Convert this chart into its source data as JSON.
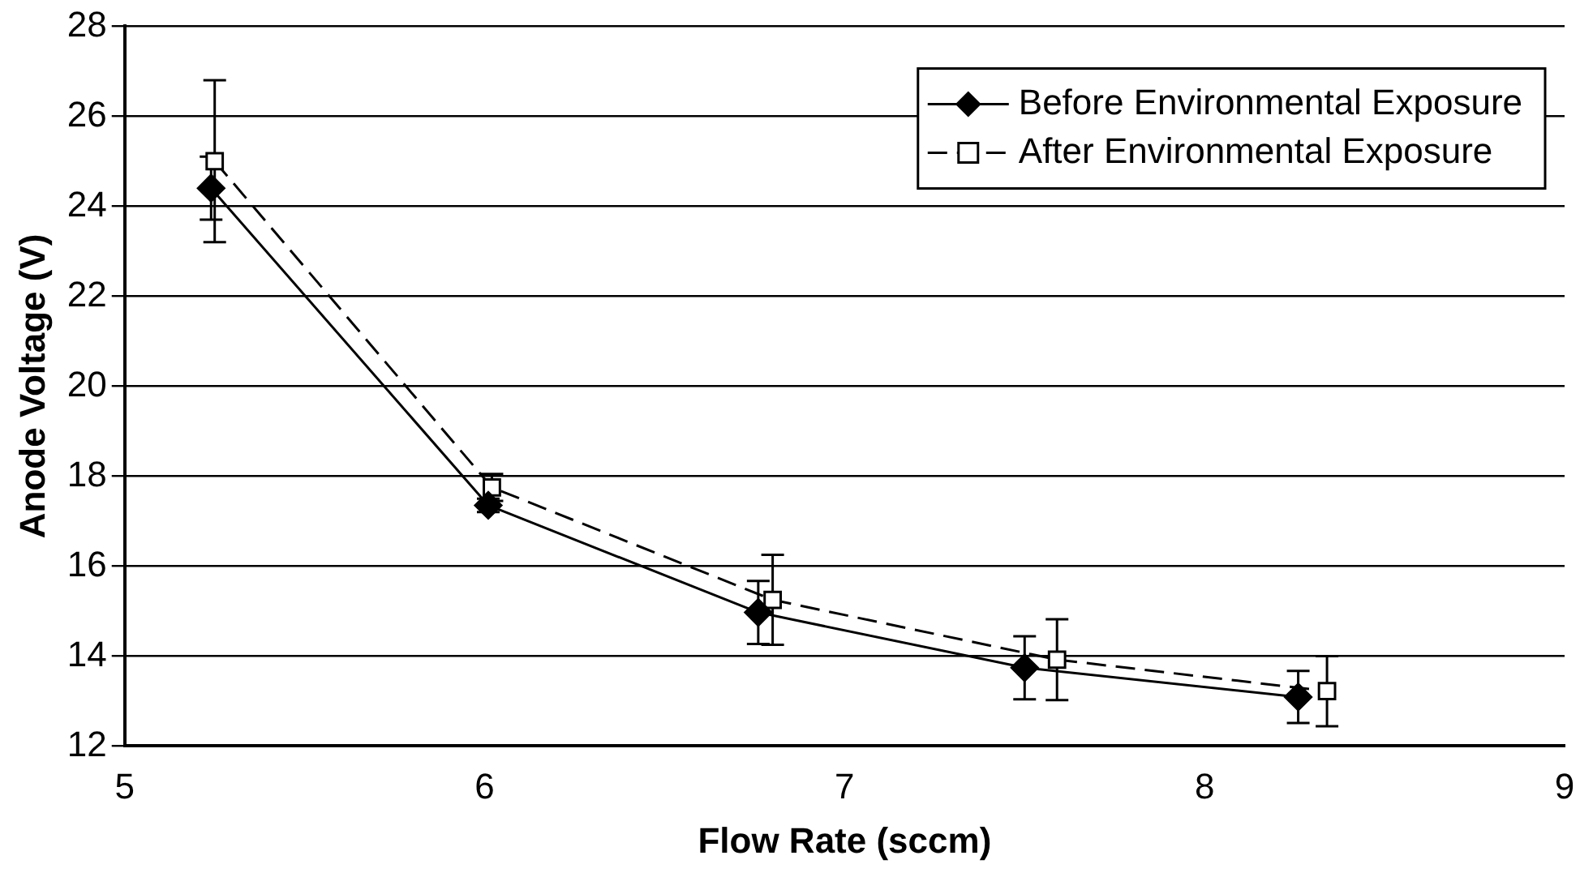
{
  "chart_data": {
    "type": "line",
    "xlabel": "Flow Rate (sccm)",
    "ylabel": "Anode Voltage (V)",
    "xlim": [
      5,
      9
    ],
    "xticks": [
      5,
      6,
      7,
      8,
      9
    ],
    "ylim": [
      12,
      28
    ],
    "yticks": [
      12,
      14,
      16,
      18,
      20,
      22,
      24,
      26,
      28
    ],
    "grid": "y",
    "legend": "top right",
    "series": [
      {
        "name": "Before Environmental Exposure",
        "color": "#000000",
        "marker": "diamond",
        "line_style": "solid",
        "x": [
          5.24,
          6.01,
          6.76,
          7.5,
          8.26
        ],
        "values": [
          24.4,
          17.35,
          14.97,
          13.74,
          13.09
        ],
        "errors": [
          0.7,
          0.15,
          0.7,
          0.7,
          0.58
        ]
      },
      {
        "name": "After Environmental Exposure",
        "color": "#000000",
        "marker": "square",
        "line_style": "dashed",
        "x": [
          5.25,
          6.02,
          6.8,
          7.59,
          8.34
        ],
        "values": [
          25.0,
          17.75,
          15.25,
          13.92,
          13.22
        ],
        "errors": [
          1.8,
          0.3,
          1.0,
          0.9,
          0.78
        ]
      }
    ]
  }
}
